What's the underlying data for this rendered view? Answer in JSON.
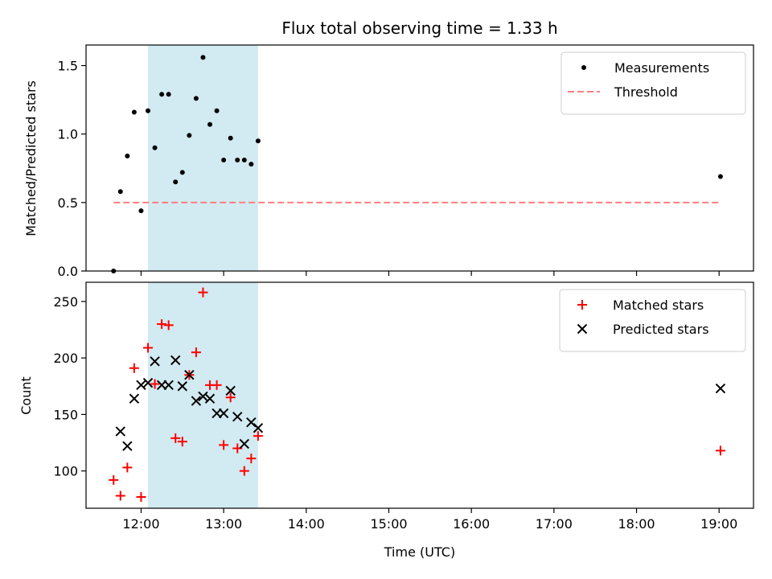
{
  "chart_data": [
    {
      "type": "scatter",
      "title": "Flux total observing time = 1.33 h",
      "xlabel": "",
      "ylabel": "Matched/Predicted stars",
      "xlim": [
        "11:20",
        "19:25"
      ],
      "ylim": [
        0,
        1.65
      ],
      "y_ticks": [
        0.0,
        0.5,
        1.0,
        1.5
      ],
      "y_tick_labels": [
        "0.0",
        "0.5",
        "1.0",
        "1.5"
      ],
      "x_tick_labels_shown": false,
      "shaded_interval": [
        "12:05",
        "13:25"
      ],
      "shade_color": "#add8e6",
      "legend_position": "upper-right",
      "series": [
        {
          "name": "Measurements",
          "marker": "dot",
          "color": "#000000",
          "x": [
            "11:40",
            "11:45",
            "11:50",
            "11:55",
            "12:00",
            "12:05",
            "12:10",
            "12:15",
            "12:20",
            "12:25",
            "12:30",
            "12:35",
            "12:40",
            "12:45",
            "12:50",
            "12:55",
            "13:00",
            "13:05",
            "13:10",
            "13:15",
            "13:20",
            "13:25",
            "19:01"
          ],
          "y": [
            0.0,
            0.58,
            0.84,
            1.16,
            0.44,
            1.17,
            0.9,
            1.29,
            1.29,
            0.65,
            0.72,
            0.99,
            1.26,
            1.56,
            1.07,
            1.17,
            0.81,
            0.97,
            0.81,
            0.81,
            0.78,
            0.95,
            0.69
          ]
        }
      ],
      "threshold": {
        "name": "Threshold",
        "value": 0.5,
        "x_range": [
          "11:40",
          "19:01"
        ],
        "color": "#ff7f7f",
        "style": "dashed"
      }
    },
    {
      "type": "scatter",
      "title": "",
      "xlabel": "Time (UTC)",
      "ylabel": "Count",
      "xlim": [
        "11:20",
        "19:25"
      ],
      "ylim": [
        67,
        267
      ],
      "y_ticks": [
        100,
        150,
        200,
        250
      ],
      "y_tick_labels": [
        "100",
        "150",
        "200",
        "250"
      ],
      "x_ticks": [
        "12:00",
        "13:00",
        "14:00",
        "15:00",
        "16:00",
        "17:00",
        "18:00",
        "19:00"
      ],
      "x_tick_labels": [
        "12:00",
        "13:00",
        "14:00",
        "15:00",
        "16:00",
        "17:00",
        "18:00",
        "19:00"
      ],
      "shaded_interval": [
        "12:05",
        "13:25"
      ],
      "shade_color": "#add8e6",
      "legend_position": "upper-right",
      "series": [
        {
          "name": "Matched stars",
          "marker": "plus",
          "color": "#ff0000",
          "x": [
            "11:40",
            "11:45",
            "11:50",
            "11:55",
            "12:00",
            "12:05",
            "12:10",
            "12:15",
            "12:20",
            "12:25",
            "12:30",
            "12:35",
            "12:40",
            "12:45",
            "12:50",
            "12:55",
            "13:00",
            "13:05",
            "13:10",
            "13:15",
            "13:20",
            "13:25",
            "19:01"
          ],
          "y": [
            92,
            78,
            103,
            191,
            77,
            209,
            177,
            230,
            229,
            129,
            126,
            185,
            205,
            258,
            176,
            176,
            123,
            165,
            120,
            100,
            111,
            131,
            118
          ]
        },
        {
          "name": "Predicted stars",
          "marker": "x",
          "color": "#000000",
          "x": [
            "11:45",
            "11:50",
            "11:55",
            "12:00",
            "12:05",
            "12:10",
            "12:15",
            "12:20",
            "12:25",
            "12:30",
            "12:35",
            "12:40",
            "12:45",
            "12:50",
            "12:55",
            "13:00",
            "13:05",
            "13:10",
            "13:15",
            "13:20",
            "13:25",
            "19:01"
          ],
          "y": [
            135,
            122,
            164,
            176,
            178,
            197,
            176,
            176,
            198,
            175,
            185,
            162,
            166,
            164,
            151,
            151,
            171,
            148,
            124,
            143,
            138,
            173
          ]
        }
      ]
    }
  ]
}
